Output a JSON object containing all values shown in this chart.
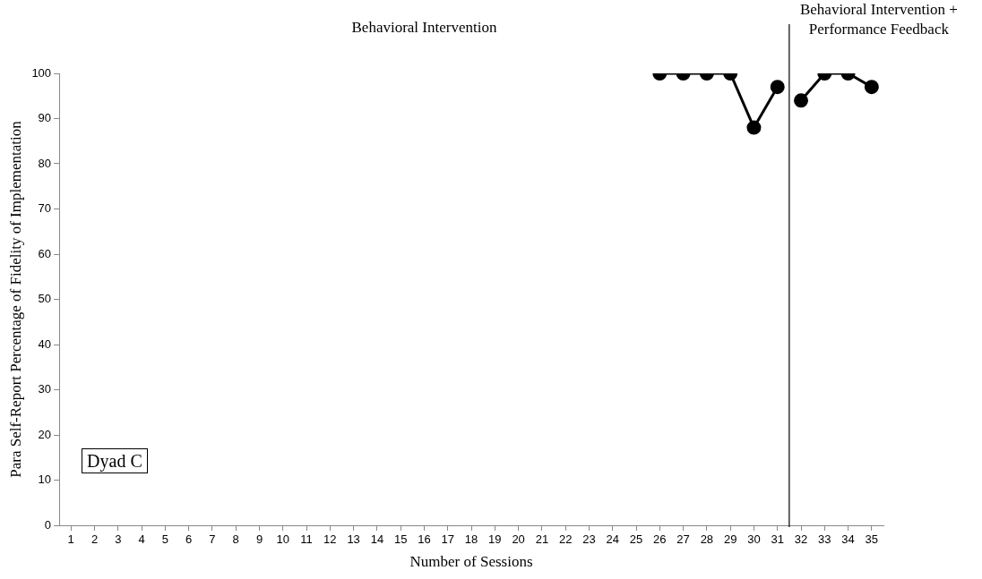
{
  "chart_data": {
    "type": "line",
    "xlabel": "Number of Sessions",
    "ylabel": "Para Self-Report Percentage of Fidelity of Implementation",
    "xlim": [
      0.5,
      35.5
    ],
    "xticks": [
      1,
      2,
      3,
      4,
      5,
      6,
      7,
      8,
      9,
      10,
      11,
      12,
      13,
      14,
      15,
      16,
      17,
      18,
      19,
      20,
      21,
      22,
      23,
      24,
      25,
      26,
      27,
      28,
      29,
      30,
      31,
      32,
      33,
      34,
      35
    ],
    "ylim": [
      0,
      100
    ],
    "yticks": [
      0,
      10,
      20,
      30,
      40,
      50,
      60,
      70,
      80,
      90,
      100
    ],
    "series": [
      {
        "color": "#000000",
        "x": [
          26,
          27,
          28,
          29,
          30,
          31
        ],
        "values": [
          100,
          100,
          100,
          100,
          88,
          97
        ]
      },
      {
        "color": "#000000",
        "x": [
          32,
          33,
          34,
          35
        ],
        "values": [
          94,
          100,
          100,
          97
        ]
      }
    ],
    "ref_lines": [
      {
        "axis": "x",
        "value": 31.5,
        "color": "#000000"
      }
    ],
    "annotations": [
      "Behavioral Intervention",
      "Behavioral Intervention + Performance Feedback",
      "Dyad C"
    ],
    "marker": "circle",
    "line_style": "solid",
    "grid": false,
    "legend": false
  }
}
